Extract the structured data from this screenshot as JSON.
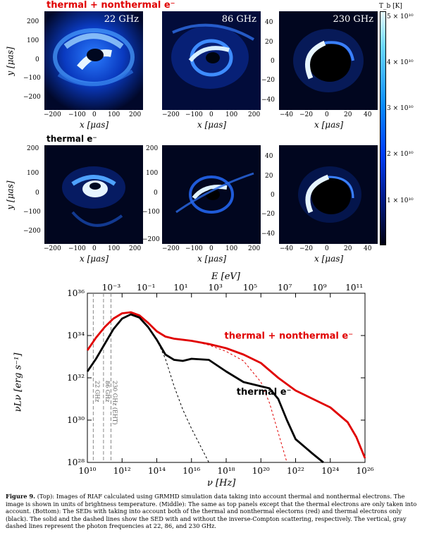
{
  "top_row_label": "thermal + nonthermal e⁻",
  "middle_row_label": "thermal e⁻",
  "panel_freqs": [
    "22 GHz",
    "86 GHz",
    "230 GHz"
  ],
  "colorbar": {
    "title": "T_b [K]",
    "ticks": [
      "5 × 10¹⁰",
      "4 × 10¹⁰",
      "3 × 10¹⁰",
      "2 × 10¹⁰",
      "1 × 10¹⁰"
    ]
  },
  "image_axes": {
    "xlabel": "x [μas]",
    "ylabel": "y [μas]",
    "ticks_200": [
      "200",
      "100",
      "0",
      "−100",
      "−200"
    ],
    "ticks_40": [
      "40",
      "20",
      "0",
      "−20",
      "−40"
    ]
  },
  "sed": {
    "top_axis_label": "E [eV]",
    "top_ticks": [
      "10⁻³",
      "10⁻¹",
      "10¹",
      "10³",
      "10⁵",
      "10⁷",
      "10⁹",
      "10¹¹"
    ],
    "xlabel": "ν [Hz]",
    "ylabel": "νLν [erg s⁻¹]",
    "x_ticks": [
      "10¹⁰",
      "10¹²",
      "10¹⁴",
      "10¹⁶",
      "10¹⁸",
      "10²⁰",
      "10²²",
      "10²⁴",
      "10²⁶"
    ],
    "y_ticks": [
      "10³⁶",
      "10³⁴",
      "10³²",
      "10³⁰",
      "10²⁸"
    ],
    "red_label": "thermal + nonthermal e⁻",
    "black_label": "thermal e⁻",
    "vlines": [
      "22 GHz",
      "86 GHz",
      "230 GHz (EHT)"
    ]
  },
  "chart_data": {
    "type": "line",
    "xlabel": "ν [Hz]",
    "ylabel": "νLν [erg s⁻¹]",
    "x_scale": "log",
    "y_scale": "log",
    "xlim": [
      10,
      26
    ],
    "ylim": [
      28,
      36
    ],
    "series": [
      {
        "name": "thermal + nonthermal e⁻",
        "color": "#e00000",
        "style": "solid",
        "x": [
          10,
          10.5,
          11,
          11.5,
          12,
          12.5,
          13,
          13.5,
          14,
          14.5,
          15,
          16,
          17,
          18,
          19,
          20,
          21,
          22,
          23,
          24,
          25,
          25.5,
          26
        ],
        "y": [
          33.3,
          33.9,
          34.4,
          34.8,
          35.05,
          35.1,
          34.95,
          34.6,
          34.2,
          33.95,
          33.85,
          33.75,
          33.6,
          33.4,
          33.1,
          32.7,
          32.0,
          31.4,
          31.0,
          30.6,
          29.9,
          29.2,
          28.2
        ]
      },
      {
        "name": "thermal + nonthermal e⁻ (no inverse-Compton)",
        "color": "#e00000",
        "style": "dashed",
        "x": [
          14.5,
          15,
          16,
          17,
          18,
          19,
          20,
          20.5,
          21,
          21.5
        ],
        "y": [
          33.95,
          33.85,
          33.75,
          33.55,
          33.25,
          32.8,
          31.8,
          30.8,
          29.4,
          28.0
        ]
      },
      {
        "name": "thermal e⁻",
        "color": "#000000",
        "style": "solid",
        "x": [
          10,
          10.5,
          11,
          11.5,
          12,
          12.5,
          13,
          13.5,
          14,
          14.5,
          15,
          15.5,
          16,
          17,
          18,
          19,
          20,
          20.5,
          21,
          21.5,
          22,
          23,
          23.6
        ],
        "y": [
          32.3,
          32.9,
          33.6,
          34.3,
          34.8,
          35.0,
          34.85,
          34.4,
          33.8,
          33.1,
          32.85,
          32.8,
          32.9,
          32.85,
          32.3,
          31.8,
          31.6,
          31.5,
          31.0,
          30.0,
          29.1,
          28.4,
          28.0
        ]
      },
      {
        "name": "thermal e⁻ (no inverse-Compton)",
        "color": "#000000",
        "style": "dashed",
        "x": [
          14,
          14.5,
          15,
          15.5,
          16,
          16.5,
          17
        ],
        "y": [
          33.8,
          32.9,
          31.6,
          30.5,
          29.6,
          28.8,
          28.0
        ]
      }
    ],
    "vlines_hz": [
      10.34,
      10.93,
      11.36
    ]
  },
  "caption": {
    "label": "Figure 9.",
    "text": "(Top): Images of RIAF calculated using GRMHD simulation data taking into account thermal and nonthermal electrons. The image is shown in units of brightness temperature. (Middle): The same as top panels except that the thermal electrons are only taken into account. (Bottom): The SEDs with taking into account both of the thermal and nonthermal electorns (red) and thermal electrons only (black). The solid and the dashed lines show the SED with and without the inverse-Compton scattering, respectively. The vertical, gray dashed lines represent the photon frequencies at 22, 86, and 230 GHz."
  }
}
